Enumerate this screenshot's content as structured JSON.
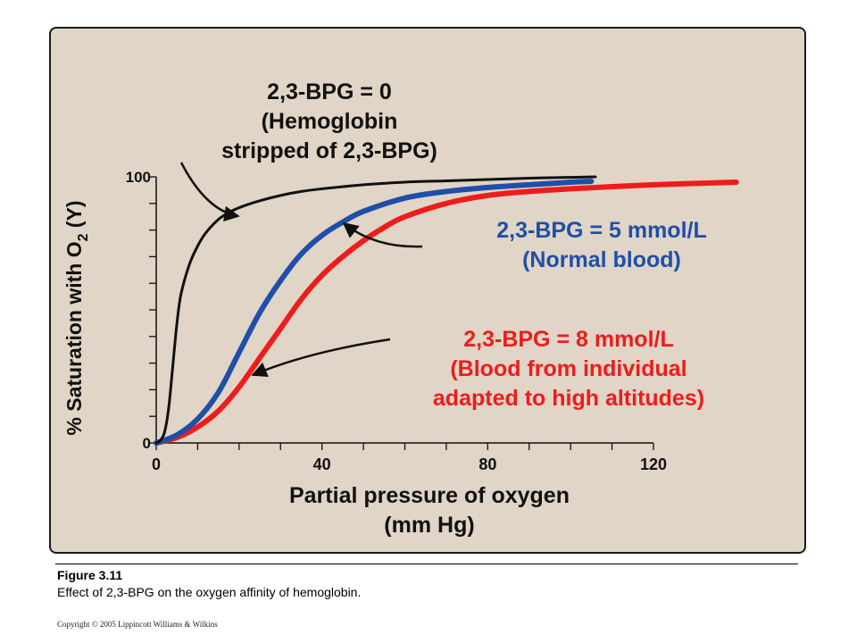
{
  "chart_data": {
    "type": "line",
    "xlabel_line1": "Partial pressure of oxygen",
    "xlabel_line2": "(mm Hg)",
    "ylabel_main": "% Saturation with O",
    "ylabel_sub": "2",
    "ylabel_tail": " (Y)",
    "xlim": [
      0,
      120
    ],
    "ylim": [
      0,
      100
    ],
    "x_ticks": [
      0,
      40,
      80,
      120
    ],
    "y_ticks": [
      0,
      100
    ],
    "grid": false,
    "legend": "none (curves labeled by annotations)",
    "series": [
      {
        "color": "#111111",
        "annotation": [
          "2,3-BPG = 0",
          "(Hemoglobin",
          "stripped of 2,3-BPG)"
        ],
        "x": [
          0,
          1,
          2,
          3,
          4,
          5,
          6,
          8,
          10,
          12,
          15,
          18,
          21,
          25,
          30,
          35,
          40,
          50,
          60,
          70,
          80,
          90,
          100,
          106
        ],
        "y": [
          0,
          1,
          4,
          13,
          29,
          45,
          56,
          67,
          74,
          79,
          84,
          87,
          89,
          91,
          93,
          94.5,
          95.5,
          97,
          98,
          98.5,
          99,
          99.5,
          99.8,
          100
        ]
      },
      {
        "color": "#1f4fa8",
        "annotation": [
          "2,3-BPG = 5 mmol/L",
          "(Normal blood)"
        ],
        "x": [
          0,
          5,
          10,
          15,
          20,
          25,
          30,
          35,
          40,
          45,
          50,
          60,
          70,
          80,
          90,
          100,
          105
        ],
        "y": [
          0,
          3,
          9,
          19,
          34,
          49,
          61,
          71,
          78,
          83,
          87,
          92,
          94.5,
          96,
          97,
          98,
          98.3
        ]
      },
      {
        "color": "#ee1c1c",
        "annotation": [
          "2,3-BPG = 8 mmol/L",
          "(Blood from individual",
          "adapted to high altitudes)"
        ],
        "x": [
          0,
          5,
          10,
          15,
          20,
          25,
          30,
          35,
          40,
          45,
          50,
          55,
          60,
          70,
          80,
          90,
          100,
          110,
          120,
          130,
          140
        ],
        "y": [
          0,
          2,
          6,
          12,
          21,
          32,
          43,
          54,
          63,
          70,
          76,
          81,
          85,
          90,
          93,
          94.5,
          95.5,
          96.3,
          97,
          97.5,
          98
        ]
      }
    ]
  },
  "caption": {
    "figure_number": "Figure 3.11",
    "text": "Effect of 2,3-BPG on the oxygen affinity of hemoglobin.",
    "copyright": "Copyright © 2005 Lippincott Williams & Wilkins"
  }
}
